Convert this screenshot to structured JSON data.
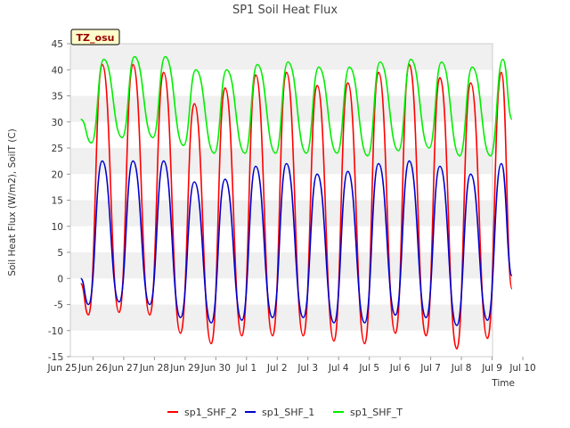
{
  "chart_data": {
    "type": "line",
    "title": "SP1 Soil Heat Flux",
    "xlabel": "Time",
    "ylabel": "Soil Heat Flux (W/m2), SoilT (C)",
    "annotation": "TZ_osu",
    "xlim": [
      0,
      15
    ],
    "ylim": [
      -15,
      45
    ],
    "y_ticks": [
      -15,
      -10,
      -5,
      0,
      5,
      10,
      15,
      20,
      25,
      30,
      35,
      40,
      45
    ],
    "x_ticks": [
      {
        "pos": 0,
        "label": "Jun 25"
      },
      {
        "pos": 1,
        "label": "Jun 26"
      },
      {
        "pos": 2,
        "label": "Jun 27"
      },
      {
        "pos": 3,
        "label": "Jun 28"
      },
      {
        "pos": 4,
        "label": "Jun 29"
      },
      {
        "pos": 5,
        "label": "Jun 30"
      },
      {
        "pos": 6,
        "label": "Jul 1"
      },
      {
        "pos": 7,
        "label": "Jul 2"
      },
      {
        "pos": 8,
        "label": "Jul 3"
      },
      {
        "pos": 9,
        "label": "Jul 4"
      },
      {
        "pos": 10,
        "label": "Jul 5"
      },
      {
        "pos": 11,
        "label": "Jul 6"
      },
      {
        "pos": 12,
        "label": "Jul 7"
      },
      {
        "pos": 13,
        "label": "Jul 8"
      },
      {
        "pos": 14,
        "label": "Jul 9"
      },
      {
        "pos": 15,
        "label": "Jul 10"
      }
    ],
    "grid": "horizontal bands",
    "legend_position": "bottom",
    "series": [
      {
        "name": "sp1_SHF_2",
        "color": "#ff0000",
        "points": [
          [
            0.6,
            -1.0
          ],
          [
            0.85,
            -7.0
          ],
          [
            1.3,
            41.0
          ],
          [
            1.85,
            -6.5
          ],
          [
            2.3,
            41.0
          ],
          [
            2.85,
            -7.0
          ],
          [
            3.3,
            39.5
          ],
          [
            3.85,
            -10.5
          ],
          [
            4.3,
            33.5
          ],
          [
            4.85,
            -12.5
          ],
          [
            5.3,
            36.5
          ],
          [
            5.85,
            -11.0
          ],
          [
            6.3,
            39.0
          ],
          [
            6.85,
            -11.0
          ],
          [
            7.3,
            39.5
          ],
          [
            7.85,
            -11.0
          ],
          [
            8.3,
            37.0
          ],
          [
            8.85,
            -12.0
          ],
          [
            9.3,
            37.5
          ],
          [
            9.85,
            -12.5
          ],
          [
            10.3,
            39.5
          ],
          [
            10.85,
            -10.5
          ],
          [
            11.3,
            41.0
          ],
          [
            11.85,
            -11.0
          ],
          [
            12.3,
            38.5
          ],
          [
            12.85,
            -13.5
          ],
          [
            13.3,
            37.5
          ],
          [
            13.85,
            -11.5
          ],
          [
            14.3,
            39.5
          ],
          [
            14.65,
            -2.0
          ]
        ]
      },
      {
        "name": "sp1_SHF_1",
        "color": "#0000cc",
        "points": [
          [
            0.6,
            0.0
          ],
          [
            0.85,
            -5.0
          ],
          [
            1.3,
            22.5
          ],
          [
            1.85,
            -4.5
          ],
          [
            2.3,
            22.5
          ],
          [
            2.85,
            -5.0
          ],
          [
            3.3,
            22.5
          ],
          [
            3.85,
            -7.5
          ],
          [
            4.3,
            18.5
          ],
          [
            4.85,
            -8.5
          ],
          [
            5.3,
            19.0
          ],
          [
            5.85,
            -8.0
          ],
          [
            6.3,
            21.5
          ],
          [
            6.85,
            -7.5
          ],
          [
            7.3,
            22.0
          ],
          [
            7.85,
            -7.5
          ],
          [
            8.3,
            20.0
          ],
          [
            8.85,
            -8.5
          ],
          [
            9.3,
            20.5
          ],
          [
            9.85,
            -8.5
          ],
          [
            10.3,
            22.0
          ],
          [
            10.85,
            -7.0
          ],
          [
            11.3,
            22.5
          ],
          [
            11.85,
            -7.5
          ],
          [
            12.3,
            21.5
          ],
          [
            12.85,
            -9.0
          ],
          [
            13.3,
            20.0
          ],
          [
            13.85,
            -8.0
          ],
          [
            14.3,
            22.0
          ],
          [
            14.65,
            0.5
          ]
        ]
      },
      {
        "name": "sp1_SHF_T",
        "color": "#00ee00",
        "points": [
          [
            0.6,
            30.5
          ],
          [
            0.95,
            26.0
          ],
          [
            1.35,
            42.0
          ],
          [
            1.95,
            27.0
          ],
          [
            2.35,
            42.5
          ],
          [
            2.95,
            27.0
          ],
          [
            3.35,
            42.5
          ],
          [
            3.95,
            25.5
          ],
          [
            4.35,
            40.0
          ],
          [
            4.95,
            24.0
          ],
          [
            5.35,
            40.0
          ],
          [
            5.95,
            24.0
          ],
          [
            6.35,
            41.0
          ],
          [
            6.95,
            24.0
          ],
          [
            7.35,
            41.5
          ],
          [
            7.95,
            24.0
          ],
          [
            8.35,
            40.5
          ],
          [
            8.95,
            24.0
          ],
          [
            9.35,
            40.5
          ],
          [
            9.95,
            23.5
          ],
          [
            10.35,
            41.5
          ],
          [
            10.95,
            24.5
          ],
          [
            11.35,
            42.0
          ],
          [
            11.95,
            25.0
          ],
          [
            12.35,
            41.5
          ],
          [
            12.95,
            23.5
          ],
          [
            13.35,
            40.5
          ],
          [
            13.95,
            23.5
          ],
          [
            14.35,
            42.0
          ],
          [
            14.65,
            30.5
          ]
        ]
      }
    ]
  }
}
